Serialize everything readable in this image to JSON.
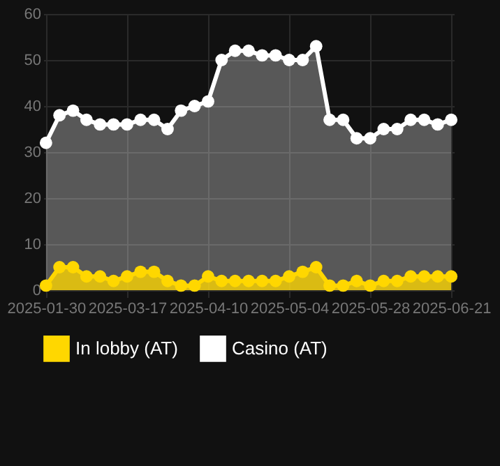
{
  "chart_data": {
    "type": "area",
    "categories": [
      "2025-01-30",
      null,
      null,
      null,
      null,
      null,
      "2025-03-17",
      null,
      null,
      null,
      null,
      null,
      "2025-04-10",
      null,
      null,
      null,
      null,
      null,
      "2025-05-04",
      null,
      null,
      null,
      null,
      null,
      "2025-05-28",
      null,
      null,
      null,
      null,
      null,
      "2025-06-21"
    ],
    "series": [
      {
        "name": "In lobby (AT)",
        "color": "#ffd700",
        "values": [
          1,
          5,
          5,
          3,
          3,
          2,
          3,
          4,
          4,
          2,
          1,
          1,
          3,
          2,
          2,
          2,
          2,
          2,
          3,
          4,
          5,
          1,
          1,
          2,
          1,
          2,
          2,
          3,
          3,
          3,
          3
        ]
      },
      {
        "name": "Casino (AT)",
        "color": "#ffffff",
        "values": [
          32,
          38,
          39,
          37,
          36,
          36,
          36,
          37,
          37,
          35,
          39,
          40,
          41,
          50,
          52,
          52,
          51,
          51,
          50,
          50,
          53,
          37,
          37,
          33,
          33,
          35,
          35,
          37,
          37,
          36,
          37
        ]
      }
    ],
    "ylim": [
      0,
      60
    ],
    "yticks": [
      0,
      10,
      20,
      30,
      40,
      50,
      60
    ],
    "grid": true,
    "legend": "bottom",
    "marker": "circle"
  }
}
